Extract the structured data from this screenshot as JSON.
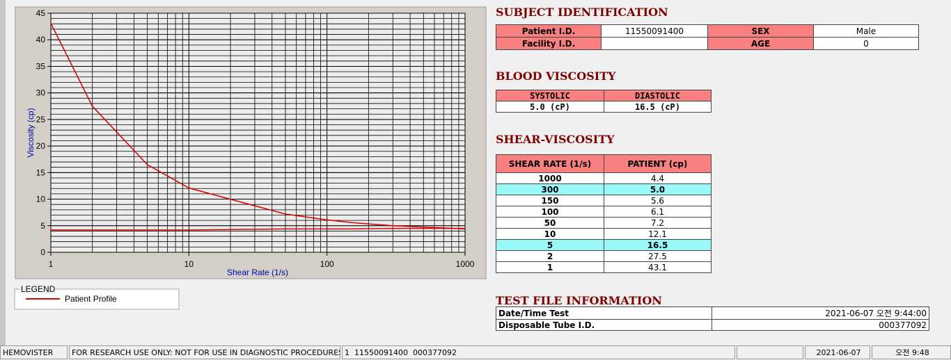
{
  "chart_data": {
    "type": "line",
    "x_label": "Shear Rate (1/s)",
    "y_label": "Viscosity (cp)",
    "x": [
      1,
      2,
      5,
      10,
      50,
      100,
      150,
      300,
      1000
    ],
    "series": [
      {
        "name": "Patient Profile",
        "color": "#d40000",
        "values": [
          43.1,
          27.5,
          16.5,
          12.1,
          7.2,
          6.1,
          5.6,
          5.0,
          4.4
        ]
      },
      {
        "color": "#d40000",
        "values": [
          4.2,
          4.2,
          4.2,
          4.2,
          4.4,
          4.4,
          4.4,
          4.5,
          4.5
        ]
      }
    ],
    "xlim": [
      1,
      1000
    ],
    "xticks": [
      1,
      10,
      100,
      1000
    ],
    "log_x": true,
    "ylim": [
      0,
      45
    ],
    "yticks": [
      0,
      5,
      10,
      15,
      20,
      25,
      30,
      35,
      40,
      45
    ],
    "grid": true,
    "legend_title": "LEGEND"
  },
  "subject": {
    "title": "SUBJECT IDENTIFICATION",
    "fields": [
      {
        "label": "Patient I.D.",
        "value": "11550091400"
      },
      {
        "label": "SEX",
        "value": "Male"
      },
      {
        "label": "Facility I.D."
      },
      {
        "label": "AGE",
        "value": "0"
      }
    ]
  },
  "blood_viscosity": {
    "title": "BLOOD VISCOSITY",
    "headers": [
      "SYSTOLIC",
      "DIASTOLIC"
    ],
    "values": [
      "5.0 (cP)",
      "16.5 (cP)"
    ]
  },
  "shear_viscosity": {
    "title": "SHEAR-VISCOSITY",
    "headers": [
      "SHEAR RATE (1/s)",
      "PATIENT (cp)"
    ],
    "rows": [
      [
        "1000",
        "4.4"
      ],
      [
        "300",
        "5.0"
      ],
      [
        "150",
        "5.6"
      ],
      [
        "100",
        "6.1"
      ],
      [
        "50",
        "7.2"
      ],
      [
        "10",
        "12.1"
      ],
      [
        "5",
        "16.5"
      ],
      [
        "2",
        "27.5"
      ],
      [
        "1",
        "43.1"
      ]
    ]
  },
  "test_file": {
    "title": "TEST FILE INFORMATION",
    "rows": [
      [
        "Date/Time Test",
        "2021-06-07   오전 9:44:00"
      ],
      [
        "Disposable Tube I.D.",
        "000377092"
      ]
    ]
  },
  "status_bar": [
    "HEMOVISTER",
    "FOR RESEARCH USE ONLY: NOT FOR USE IN DIAGNOSTIC PROCEDURES",
    "1  11550091400  000377092",
    "2021-06-07",
    "오전 9:48"
  ]
}
